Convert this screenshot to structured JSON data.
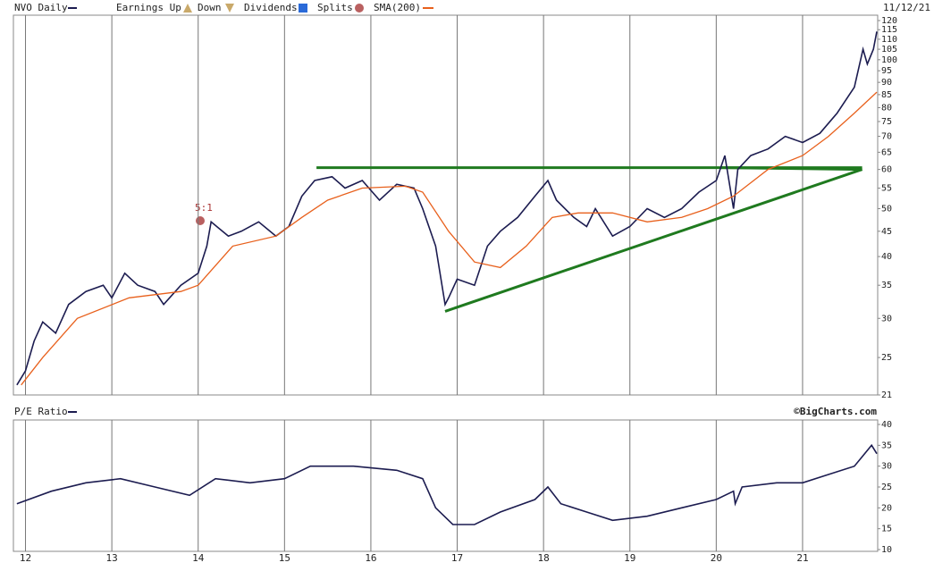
{
  "chart_data": [
    {
      "type": "line",
      "title": "NVO Daily",
      "date": "11/12/21",
      "legend": [
        "Earnings Up",
        "Down",
        "Dividends",
        "Splits"
      ],
      "annotation": "5:1",
      "log_scale": true,
      "grid": true,
      "x": [
        11.9,
        12.0,
        12.1,
        12.2,
        12.35,
        12.5,
        12.7,
        12.9,
        13.0,
        13.15,
        13.3,
        13.5,
        13.6,
        13.8,
        14.0,
        14.1,
        14.15,
        14.35,
        14.5,
        14.7,
        14.9,
        15.05,
        15.2,
        15.35,
        15.55,
        15.7,
        15.9,
        16.1,
        16.3,
        16.5,
        16.6,
        16.75,
        16.86,
        16.9,
        17.0,
        17.2,
        17.35,
        17.5,
        17.7,
        17.9,
        18.05,
        18.15,
        18.35,
        18.5,
        18.6,
        18.8,
        19.0,
        19.2,
        19.4,
        19.6,
        19.8,
        20.0,
        20.1,
        20.2,
        20.25,
        20.4,
        20.6,
        20.8,
        21.0,
        21.2,
        21.4,
        21.6,
        21.7,
        21.75,
        21.82,
        21.86
      ],
      "series": [
        {
          "name": "NVO Daily",
          "color": "#1c1c50",
          "values": [
            22,
            23.5,
            27,
            29.5,
            28,
            32,
            34,
            35,
            33,
            37,
            35,
            34,
            32,
            35,
            37,
            42,
            47,
            44,
            45,
            47,
            44,
            46,
            53,
            57,
            58,
            55,
            57,
            52,
            56,
            55,
            50,
            42,
            32,
            33,
            36,
            35,
            42,
            45,
            48,
            53,
            57,
            52,
            48,
            46,
            50,
            44,
            46,
            50,
            48,
            50,
            54,
            57,
            64,
            50,
            60,
            64,
            66,
            70,
            68,
            71,
            78,
            88,
            105,
            98,
            105,
            114
          ]
        },
        {
          "name": "SMA(200)",
          "color": "#e8601c",
          "x": [
            11.95,
            12.2,
            12.6,
            13.2,
            13.8,
            14.0,
            14.4,
            14.9,
            15.2,
            15.5,
            15.9,
            16.4,
            16.6,
            16.9,
            17.2,
            17.5,
            17.8,
            18.1,
            18.4,
            18.8,
            19.2,
            19.6,
            19.9,
            20.2,
            20.6,
            21.0,
            21.3,
            21.6,
            21.86
          ],
          "values": [
            22,
            25,
            30,
            33,
            34,
            35,
            42,
            44,
            48,
            52,
            55,
            55.5,
            54,
            45,
            39,
            38,
            42,
            48,
            49,
            49,
            47,
            48,
            50,
            53,
            60,
            64,
            70,
            78,
            86
          ]
        }
      ],
      "trendlines": [
        {
          "x": [
            15.37,
            21.69
          ],
          "values": [
            60.5,
            60.5
          ],
          "color": "#1f7a1f"
        },
        {
          "x": [
            16.86,
            21.69
          ],
          "values": [
            31,
            60
          ],
          "color": "#1f7a1f"
        },
        {
          "x": [
            20.05,
            21.69
          ],
          "values": [
            60.5,
            60
          ],
          "color": "#1f7a1f"
        }
      ],
      "xlim": [
        11.86,
        21.87
      ],
      "ylim": [
        21,
        120
      ],
      "yticks": [
        21,
        25,
        30,
        35,
        40,
        45,
        50,
        55,
        60,
        65,
        70,
        75,
        80,
        85,
        90,
        95,
        100,
        105,
        110,
        115,
        120
      ]
    },
    {
      "type": "line",
      "title": "P/E Ratio",
      "source": "©BigCharts.com",
      "x": [
        11.9,
        12.3,
        12.7,
        13.1,
        13.5,
        13.9,
        14.2,
        14.6,
        15.0,
        15.3,
        15.8,
        16.3,
        16.6,
        16.75,
        16.95,
        17.2,
        17.5,
        17.9,
        18.05,
        18.2,
        18.5,
        18.8,
        19.2,
        19.6,
        20.0,
        20.2,
        20.22,
        20.3,
        20.7,
        21.0,
        21.3,
        21.6,
        21.8,
        21.86
      ],
      "series": [
        {
          "name": "P/E Ratio",
          "color": "#1c1c50",
          "values": [
            21,
            24,
            26,
            27,
            25,
            23,
            27,
            26,
            27,
            30,
            30,
            29,
            27,
            20,
            16,
            16,
            19,
            22,
            25,
            21,
            19,
            17,
            18,
            20,
            22,
            24,
            21,
            25,
            26,
            26,
            28,
            30,
            35,
            33
          ]
        }
      ],
      "xlim": [
        11.86,
        21.87
      ],
      "ylim": [
        10,
        40
      ],
      "xticks": [
        12,
        13,
        14,
        15,
        16,
        17,
        18,
        19,
        20,
        21
      ],
      "yticks": [
        10,
        15,
        20,
        25,
        30,
        35,
        40
      ]
    }
  ]
}
